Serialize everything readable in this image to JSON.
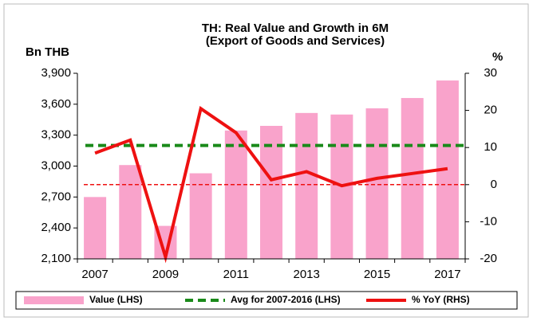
{
  "chart_data": {
    "type": "bar-line",
    "title": "TH: Real Value and Growth in 6M",
    "subtitle": "(Export of Goods and Services)",
    "y_label": "Bn THB",
    "y2_label": "%",
    "categories": [
      "2007",
      null,
      "2009",
      null,
      "2011",
      null,
      "2013",
      null,
      "2015",
      null,
      "2017"
    ],
    "series": [
      {
        "name": "Value (LHS)",
        "type": "bar",
        "color": "#f9a3cb",
        "values": [
          2700,
          3010,
          2420,
          2930,
          3345,
          3390,
          3515,
          3500,
          3560,
          3660,
          3830
        ]
      },
      {
        "name": "Avg for 2007-2016 (LHS)",
        "type": "hline",
        "color": "#1a8a1a",
        "value": 3200
      },
      {
        "name": "% YoY (RHS)",
        "type": "line",
        "axis": "y2",
        "color": "#ee1111",
        "values": [
          8.5,
          12,
          -19.5,
          20.5,
          14,
          1.3,
          3.5,
          -0.3,
          1.7,
          3,
          4.3
        ]
      }
    ],
    "y2_refline": {
      "value": 0,
      "color": "#ee1111"
    },
    "ylim": [
      2100,
      3900
    ],
    "yticks": [
      {
        "value": 2100,
        "label": "2,100"
      },
      {
        "value": 2400,
        "label": "2,400"
      },
      {
        "value": 2700,
        "label": "2,700"
      },
      {
        "value": 3000,
        "label": "3,000"
      },
      {
        "value": 3300,
        "label": "3,300"
      },
      {
        "value": 3600,
        "label": "3,600"
      },
      {
        "value": 3900,
        "label": "3,900"
      }
    ],
    "y2lim": [
      -20,
      30
    ],
    "y2ticks": [
      -20,
      -10,
      0,
      10,
      20,
      30
    ]
  }
}
